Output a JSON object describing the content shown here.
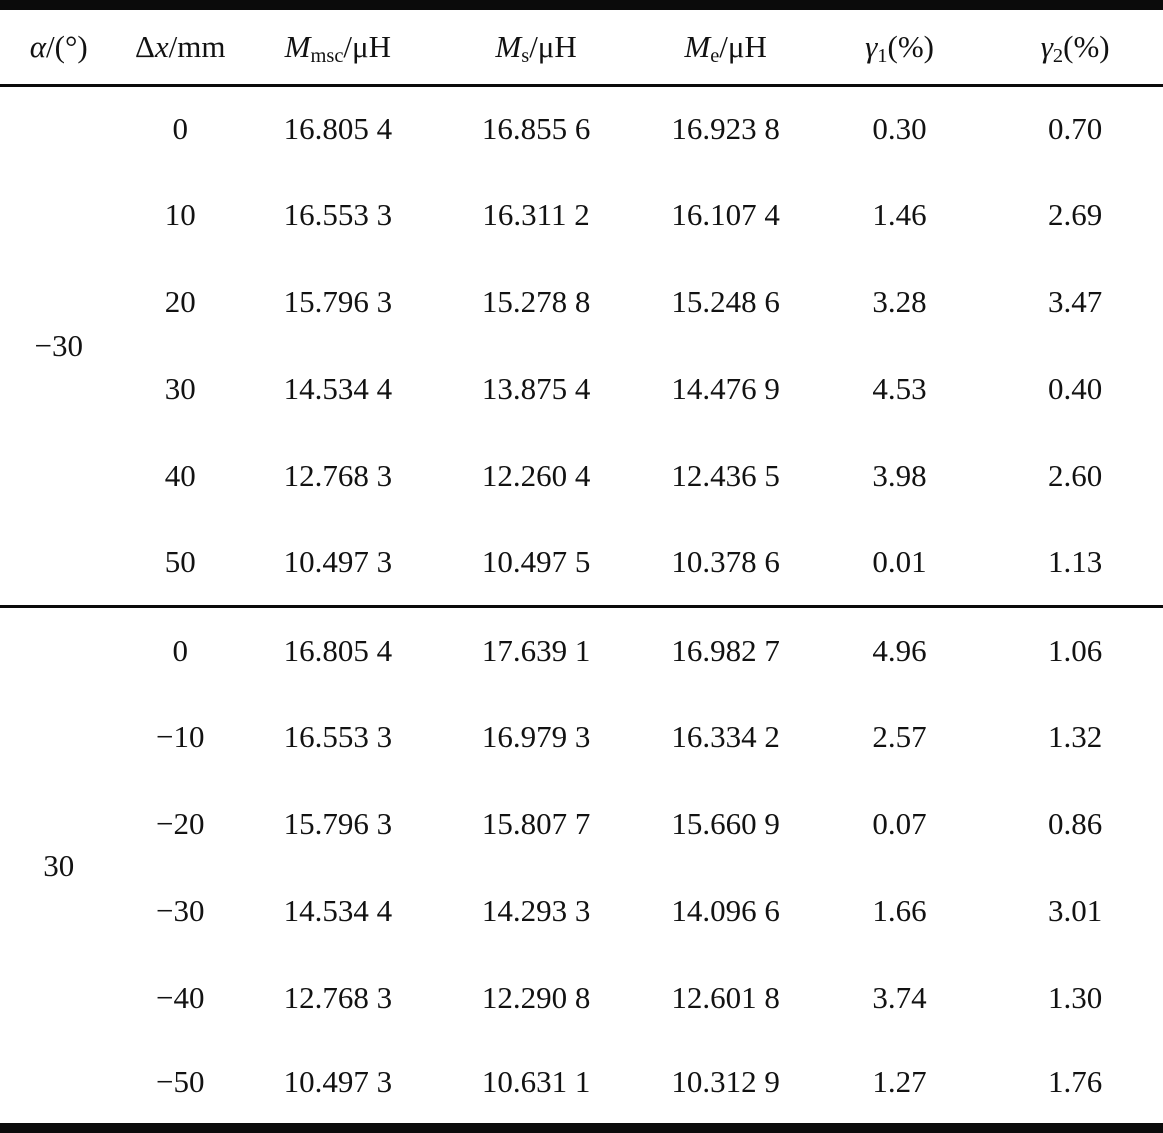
{
  "table": {
    "columns": [
      {
        "id": "alpha",
        "label": "α/(°)",
        "segments": [
          {
            "t": "α",
            "s": "i"
          },
          {
            "t": "/(°)",
            "s": "n"
          }
        ]
      },
      {
        "id": "dx",
        "label": "Δx/mm",
        "segments": [
          {
            "t": "Δ",
            "s": "n"
          },
          {
            "t": "x",
            "s": "i"
          },
          {
            "t": "/mm",
            "s": "n"
          }
        ]
      },
      {
        "id": "m-msc",
        "label": "M_msc/μH",
        "segments": [
          {
            "t": "M",
            "s": "i"
          },
          {
            "t": "msc",
            "s": "sub"
          },
          {
            "t": "/μH",
            "s": "n"
          }
        ]
      },
      {
        "id": "m-s",
        "label": "M_s/μH",
        "segments": [
          {
            "t": "M",
            "s": "i"
          },
          {
            "t": "s",
            "s": "sub"
          },
          {
            "t": "/μH",
            "s": "n"
          }
        ]
      },
      {
        "id": "m-e",
        "label": "M_e/μH",
        "segments": [
          {
            "t": "M",
            "s": "i"
          },
          {
            "t": "e",
            "s": "sub"
          },
          {
            "t": "/μH",
            "s": "n"
          }
        ]
      },
      {
        "id": "gamma1",
        "label": "γ1(%)",
        "segments": [
          {
            "t": "γ",
            "s": "i"
          },
          {
            "t": "1",
            "s": "sub"
          },
          {
            "t": "(%)",
            "s": "n"
          }
        ]
      },
      {
        "id": "gamma2",
        "label": "γ2(%)",
        "segments": [
          {
            "t": "γ",
            "s": "i"
          },
          {
            "t": "2",
            "s": "sub"
          },
          {
            "t": "(%)",
            "s": "n"
          }
        ]
      }
    ],
    "col_widths_pct": [
      10.1,
      10.8,
      16.3,
      17.8,
      14.8,
      15.1,
      15.1
    ],
    "groups": [
      {
        "alpha": "−30",
        "rows": [
          [
            "0",
            "16.805 4",
            "16.855 6",
            "16.923 8",
            "0.30",
            "0.70"
          ],
          [
            "10",
            "16.553 3",
            "16.311 2",
            "16.107 4",
            "1.46",
            "2.69"
          ],
          [
            "20",
            "15.796 3",
            "15.278 8",
            "15.248 6",
            "3.28",
            "3.47"
          ],
          [
            "30",
            "14.534 4",
            "13.875 4",
            "14.476 9",
            "4.53",
            "0.40"
          ],
          [
            "40",
            "12.768 3",
            "12.260 4",
            "12.436 5",
            "3.98",
            "2.60"
          ],
          [
            "50",
            "10.497 3",
            "10.497 5",
            "10.378 6",
            "0.01",
            "1.13"
          ]
        ]
      },
      {
        "alpha": "30",
        "rows": [
          [
            "0",
            "16.805 4",
            "17.639 1",
            "16.982 7",
            "4.96",
            "1.06"
          ],
          [
            "−10",
            "16.553 3",
            "16.979 3",
            "16.334 2",
            "2.57",
            "1.32"
          ],
          [
            "−20",
            "15.796 3",
            "15.807 7",
            "15.660 9",
            "0.07",
            "0.86"
          ],
          [
            "−30",
            "14.534 4",
            "14.293 3",
            "14.096 6",
            "1.66",
            "3.01"
          ],
          [
            "−40",
            "12.768 3",
            "12.290 8",
            "12.601 8",
            "3.74",
            "1.30"
          ],
          [
            "−50",
            "10.497 3",
            "10.631 1",
            "10.312 9",
            "1.27",
            "1.76"
          ]
        ]
      }
    ]
  }
}
